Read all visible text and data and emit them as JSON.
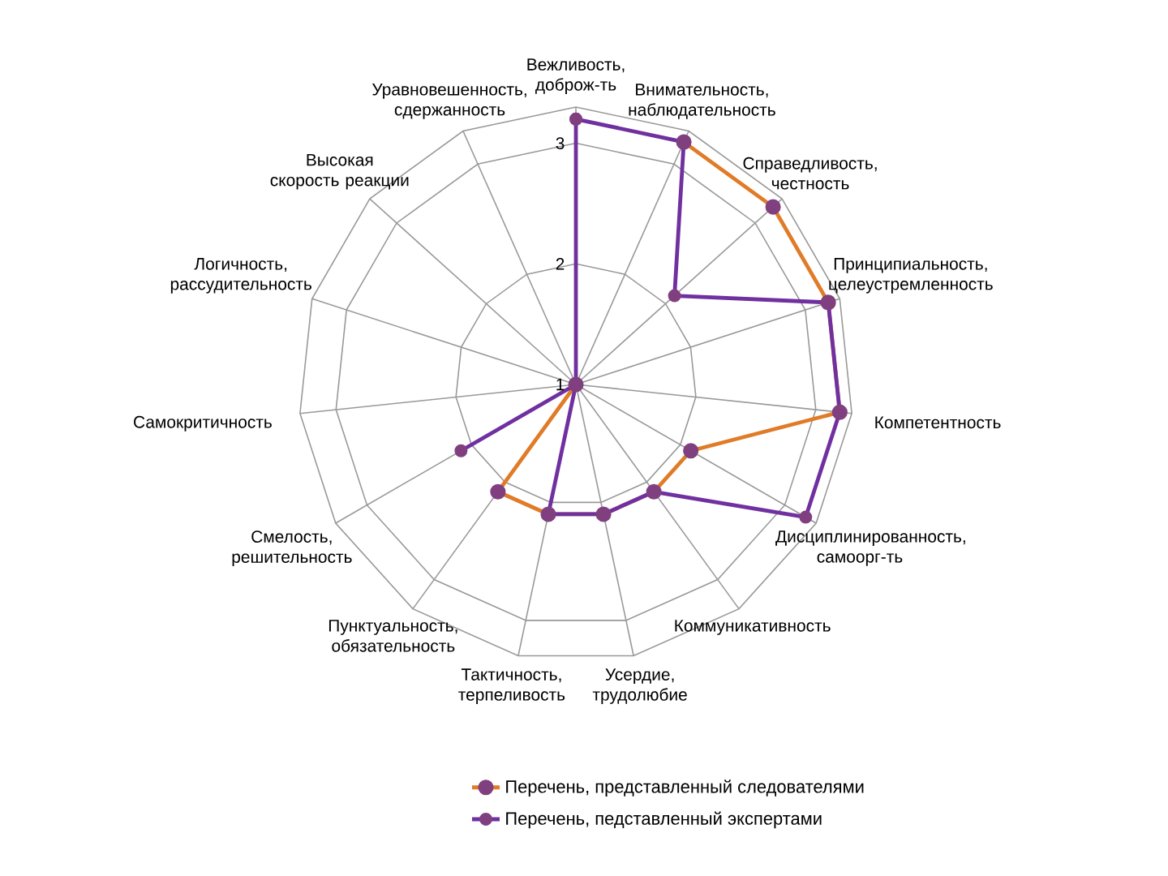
{
  "chart_data": {
    "type": "radar",
    "categories": [
      "Вежливость, доброж-ть",
      "Внимательность, наблюдательность",
      "Справедливость, честность",
      "Принципиальность, целеустремленность",
      "Компетентность",
      "Дисциплинированность, самоорг-ть",
      "Коммуникативность",
      "Усердие, трудолюбие",
      "Тактичность, терпеливость",
      "Пунктуальность, обязательность",
      "Смелость, решительность",
      "Самокритичность",
      "Логичность, рассудительность",
      "Высокая скорость реакции",
      "Уравновешенность, сдержанность"
    ],
    "series": [
      {
        "name": "Перечень, представленный следователями",
        "color": "#e07b28",
        "values": [
          null,
          3.2,
          3.2,
          3.2,
          3.2,
          2.1,
          2.1,
          2.1,
          2.1,
          2.1,
          1,
          null,
          null,
          null,
          null
        ]
      },
      {
        "name": "Перечень, педставленный экспертами",
        "color": "#7030a0",
        "values": [
          3.2,
          3.2,
          2.1,
          3.2,
          3.2,
          3.2,
          2.1,
          2.1,
          2.1,
          1,
          2.1,
          1,
          1,
          1,
          1
        ]
      }
    ],
    "ylim": [
      1,
      3.3
    ],
    "yticks": [
      1,
      2,
      3
    ],
    "grid": true,
    "legend": "bottom",
    "marker": "circle",
    "line_style": "solid"
  }
}
